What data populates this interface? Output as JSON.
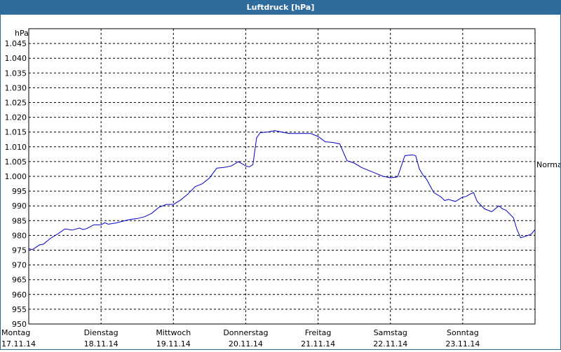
{
  "window": {
    "title": "Luftdruck [hPa]"
  },
  "chart_data": {
    "type": "line",
    "title": "Luftdruck [hPa]",
    "ylabel": "hPa",
    "ylim": [
      950,
      1050
    ],
    "yticks": [
      950,
      955,
      960,
      965,
      970,
      975,
      980,
      985,
      990,
      995,
      1000,
      1005,
      1010,
      1015,
      1020,
      1025,
      1030,
      1035,
      1040,
      1045
    ],
    "ytick_labels": [
      "950",
      "955",
      "960",
      "965",
      "970",
      "975",
      "980",
      "985",
      "990",
      "995",
      "1.000",
      "1.005",
      "1.010",
      "1.015",
      "1.020",
      "1.025",
      "1.030",
      "1.035",
      "1.040",
      "1.045"
    ],
    "xlim": [
      0,
      7
    ],
    "xticks": [
      {
        "day": "Montag",
        "date": "17.11.14"
      },
      {
        "day": "Dienstag",
        "date": "18.11.14"
      },
      {
        "day": "Mittwoch",
        "date": "19.11.14"
      },
      {
        "day": "Donnerstag",
        "date": "20.11.14"
      },
      {
        "day": "Freitag",
        "date": "21.11.14"
      },
      {
        "day": "Samstag",
        "date": "22.11.14"
      },
      {
        "day": "Sonntag",
        "date": "23.11.14"
      }
    ],
    "reference_line": {
      "label": "Normal",
      "value": 1004
    },
    "grid": true,
    "line_color": "#0000cc",
    "series": [
      {
        "x": [
          0.0,
          0.05,
          0.1,
          0.15,
          0.2,
          0.3,
          0.4,
          0.5,
          0.6,
          0.7,
          0.75,
          0.8,
          0.9,
          1.0,
          1.05,
          1.1,
          1.2,
          1.3,
          1.4,
          1.5,
          1.6,
          1.7,
          1.8,
          1.9,
          2.0,
          2.1,
          2.2,
          2.3,
          2.4,
          2.5,
          2.6,
          2.7,
          2.8,
          2.9,
          3.0,
          3.05,
          3.1,
          3.15,
          3.2,
          3.3,
          3.4,
          3.5,
          3.6,
          3.7,
          3.8,
          3.9,
          4.0,
          4.1,
          4.2,
          4.3,
          4.4,
          4.5,
          4.6,
          4.7,
          4.8,
          4.9,
          5.0,
          5.1,
          5.2,
          5.3,
          5.35,
          5.4,
          5.45,
          5.5,
          5.6,
          5.7,
          5.75,
          5.8,
          5.9,
          6.0,
          6.05,
          6.1,
          6.15,
          6.2,
          6.3,
          6.4,
          6.5,
          6.55,
          6.6,
          6.7,
          6.75,
          6.8,
          6.9,
          6.95,
          7.0
        ],
        "y": [
          975.5,
          975.2,
          976.0,
          976.8,
          977.0,
          979.0,
          980.5,
          982.2,
          981.8,
          982.5,
          982.0,
          982.3,
          983.6,
          983.6,
          984.3,
          983.8,
          984.2,
          984.8,
          985.4,
          985.7,
          986.3,
          987.5,
          989.5,
          990.5,
          990.5,
          992.0,
          994.0,
          996.5,
          997.5,
          999.5,
          1002.8,
          1003.0,
          1003.5,
          1005.0,
          1003.5,
          1003.2,
          1004.0,
          1013.0,
          1014.8,
          1015.0,
          1015.5,
          1015.0,
          1014.5,
          1014.5,
          1014.5,
          1014.5,
          1013.5,
          1011.7,
          1011.5,
          1011.0,
          1005.3,
          1004.5,
          1003.0,
          1002.0,
          1001.0,
          1000.0,
          999.5,
          999.8,
          1007.0,
          1007.3,
          1007.0,
          1002.5,
          1000.5,
          999.0,
          994.5,
          993.0,
          991.8,
          992.2,
          991.5,
          993.0,
          993.2,
          994.0,
          994.5,
          991.5,
          989.0,
          988.0,
          990.0,
          989.0,
          988.5,
          986.0,
          982.0,
          979.2,
          980.0,
          980.5,
          982.0
        ]
      }
    ]
  }
}
